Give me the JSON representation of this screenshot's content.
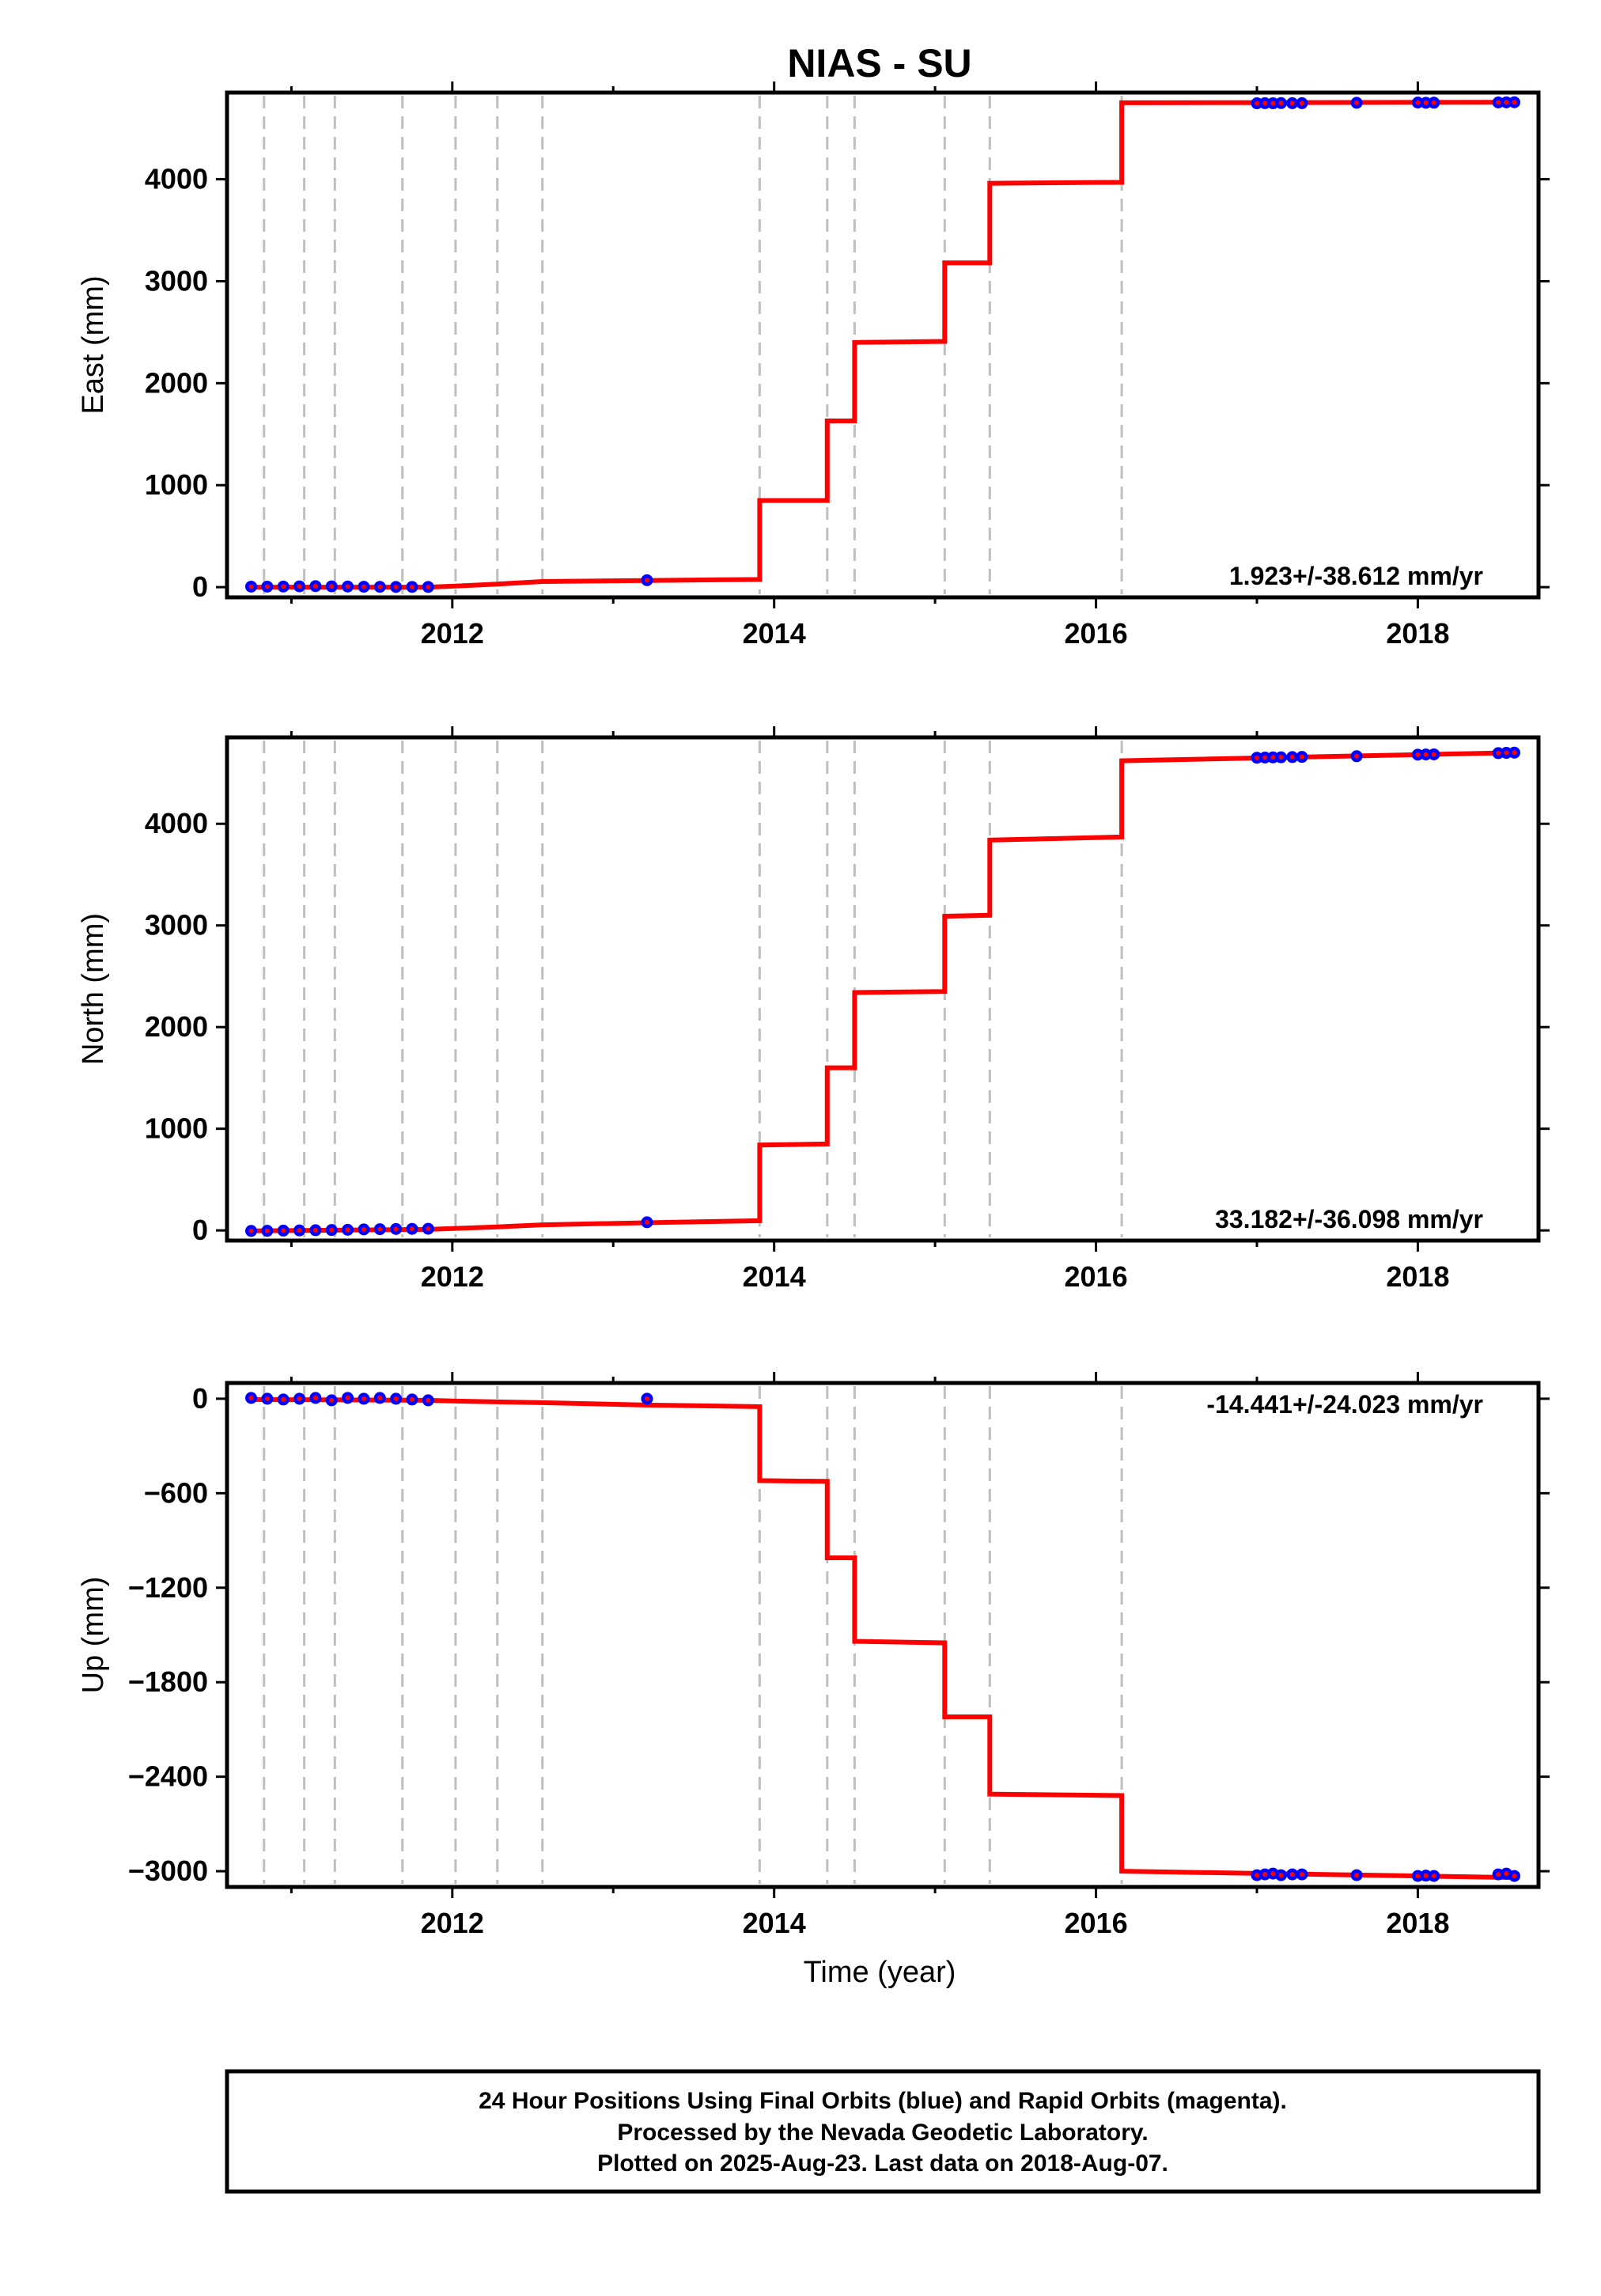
{
  "title": "NIAS - SU",
  "xlabel": "Time (year)",
  "colors": {
    "model": "#ff0000",
    "final_orbits": "#0000ff",
    "rapid_orbits": "#ff00ff",
    "event_lines": "#bfbfbf",
    "frame": "#000000"
  },
  "footer": {
    "line1": "24 Hour Positions Using Final Orbits (blue) and Rapid Orbits (magenta).",
    "line2": "Processed by the Nevada Geodetic Laboratory.",
    "line3": "Plotted on 2025-Aug-23. Last data on 2018-Aug-07."
  },
  "chart_data": [
    {
      "type": "line",
      "panel": "east",
      "ylabel": "East (mm)",
      "rate_label": "1.923+/-38.612 mm/yr",
      "xlim": [
        2010.6,
        2018.75
      ],
      "ylim": [
        -100,
        4850
      ],
      "x_ticks": [
        2012,
        2014,
        2016,
        2018
      ],
      "y_ticks": [
        0,
        1000,
        2000,
        3000,
        4000
      ],
      "event_lines": [
        2010.83,
        2011.08,
        2011.27,
        2011.69,
        2012.02,
        2012.28,
        2012.56,
        2013.91,
        2014.33,
        2014.5,
        2015.06,
        2015.34,
        2016.16
      ],
      "model": {
        "x": [
          2010.75,
          2011.85,
          2012.02,
          2012.28,
          2012.56,
          2013.2,
          2013.91,
          2013.91,
          2014.33,
          2014.33,
          2014.5,
          2014.5,
          2015.06,
          2015.06,
          2015.34,
          2015.34,
          2016.16,
          2016.16,
          2018.6
        ],
        "y": [
          0,
          0,
          10,
          30,
          55,
          65,
          75,
          850,
          850,
          1630,
          1630,
          2400,
          2410,
          3180,
          3180,
          3960,
          3970,
          4750,
          4755
        ]
      },
      "final_orbits": {
        "x": [
          2010.75,
          2010.85,
          2010.95,
          2011.05,
          2011.15,
          2011.25,
          2011.35,
          2011.45,
          2011.55,
          2011.65,
          2011.75,
          2011.85,
          2013.21,
          2017.0,
          2017.05,
          2017.1,
          2017.15,
          2017.22,
          2017.28,
          2017.62,
          2018.0,
          2018.05,
          2018.1,
          2018.5,
          2018.55,
          2018.6
        ],
        "y": [
          5,
          5,
          6,
          8,
          10,
          8,
          6,
          4,
          3,
          2,
          2,
          2,
          68,
          4745,
          4746,
          4745,
          4747,
          4746,
          4746,
          4750,
          4752,
          4750,
          4751,
          4753,
          4754,
          4755
        ]
      }
    },
    {
      "type": "line",
      "panel": "north",
      "ylabel": "North (mm)",
      "rate_label": "33.182+/-36.098 mm/yr",
      "xlim": [
        2010.6,
        2018.75
      ],
      "ylim": [
        -100,
        4850
      ],
      "x_ticks": [
        2012,
        2014,
        2016,
        2018
      ],
      "y_ticks": [
        0,
        1000,
        2000,
        3000,
        4000
      ],
      "event_lines": [
        2010.83,
        2011.08,
        2011.27,
        2011.69,
        2012.02,
        2012.28,
        2012.56,
        2013.91,
        2014.33,
        2014.5,
        2015.06,
        2015.34,
        2016.16
      ],
      "model": {
        "x": [
          2010.75,
          2011.85,
          2012.02,
          2012.28,
          2012.56,
          2013.2,
          2013.91,
          2013.91,
          2014.33,
          2014.33,
          2014.5,
          2014.5,
          2015.06,
          2015.06,
          2015.34,
          2015.34,
          2016.16,
          2016.16,
          2018.6
        ],
        "y": [
          -5,
          10,
          20,
          35,
          55,
          75,
          95,
          840,
          850,
          1600,
          1600,
          2340,
          2350,
          3090,
          3100,
          3840,
          3870,
          4620,
          4700
        ]
      },
      "final_orbits": {
        "x": [
          2010.75,
          2010.85,
          2010.95,
          2011.05,
          2011.15,
          2011.25,
          2011.35,
          2011.45,
          2011.55,
          2011.65,
          2011.75,
          2011.85,
          2013.21,
          2017.0,
          2017.05,
          2017.1,
          2017.15,
          2017.22,
          2017.28,
          2017.62,
          2018.0,
          2018.05,
          2018.1,
          2018.5,
          2018.55,
          2018.6
        ],
        "y": [
          -5,
          -4,
          -2,
          0,
          2,
          4,
          6,
          10,
          12,
          14,
          15,
          16,
          80,
          4650,
          4652,
          4653,
          4654,
          4656,
          4658,
          4665,
          4680,
          4682,
          4683,
          4695,
          4698,
          4700
        ]
      }
    },
    {
      "type": "line",
      "panel": "up",
      "ylabel": "Up (mm)",
      "rate_label": "-14.441+/-24.023 mm/yr",
      "xlim": [
        2010.6,
        2018.75
      ],
      "ylim": [
        -3100,
        100
      ],
      "x_ticks": [
        2012,
        2014,
        2016,
        2018
      ],
      "y_ticks": [
        0,
        -600,
        -1200,
        -1800,
        -2400,
        -3000
      ],
      "event_lines": [
        2010.83,
        2011.08,
        2011.27,
        2011.69,
        2012.02,
        2012.28,
        2012.56,
        2013.91,
        2014.33,
        2014.5,
        2015.06,
        2015.34,
        2016.16
      ],
      "model": {
        "x": [
          2010.75,
          2011.85,
          2012.02,
          2012.28,
          2012.56,
          2013.2,
          2013.91,
          2013.91,
          2014.33,
          2014.33,
          2014.5,
          2014.5,
          2015.06,
          2015.06,
          2015.34,
          2015.34,
          2016.16,
          2016.16,
          2018.6
        ],
        "y": [
          -5,
          -10,
          -15,
          -20,
          -25,
          -40,
          -50,
          -520,
          -525,
          -1010,
          -1010,
          -1540,
          -1550,
          -2020,
          -2020,
          -2510,
          -2520,
          -3000,
          -3040
        ]
      },
      "final_orbits": {
        "x": [
          2010.75,
          2010.85,
          2010.95,
          2011.05,
          2011.15,
          2011.25,
          2011.35,
          2011.45,
          2011.55,
          2011.65,
          2011.75,
          2011.85,
          2013.21,
          2017.0,
          2017.05,
          2017.1,
          2017.15,
          2017.22,
          2017.28,
          2017.62,
          2018.0,
          2018.05,
          2018.1,
          2018.5,
          2018.55,
          2018.6
        ],
        "y": [
          5,
          0,
          -5,
          0,
          5,
          -10,
          5,
          0,
          5,
          0,
          -5,
          -10,
          0,
          -3025,
          -3020,
          -3015,
          -3025,
          -3020,
          -3020,
          -3025,
          -3030,
          -3028,
          -3030,
          -3020,
          -3015,
          -3030
        ]
      }
    }
  ]
}
